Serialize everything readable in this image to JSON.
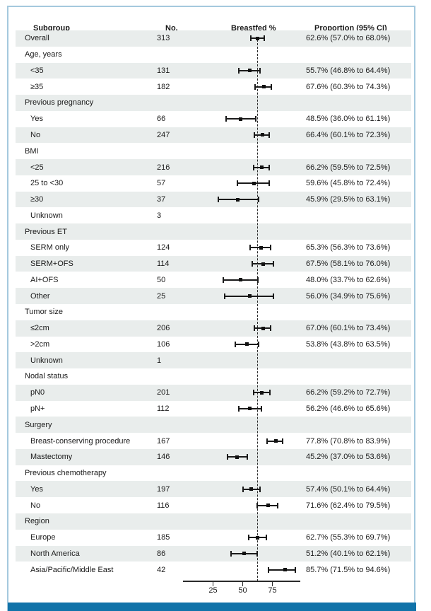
{
  "header": {
    "subgroup": "Subgroup",
    "no": "No.",
    "plot": "Breastfed %",
    "proportion": "Proportion (95% CI)"
  },
  "colors": {
    "row_shade": "#e9edec",
    "frame_border": "#a5c9de",
    "bottom_bar": "#1173a9",
    "ink": "#1a1a1a"
  },
  "axis": {
    "ticks": [
      25,
      50,
      75
    ],
    "reference_line": 62.6
  },
  "chart_data": {
    "type": "scatter",
    "subtype": "forest-plot",
    "title": "",
    "xlabel": "Breastfed %",
    "xlim": [
      0,
      100
    ],
    "xticks": [
      25,
      50,
      75
    ],
    "reference_line": 62.6,
    "legend": "none",
    "grid": false,
    "rows": [
      {
        "label": "Overall",
        "n": "313",
        "est": 62.6,
        "lo": 57.0,
        "hi": 68.0,
        "ci": "62.6% (57.0% to 68.0%)",
        "kind": "overall",
        "indent": false
      },
      {
        "label": "Age, years",
        "n": "",
        "est": null,
        "lo": null,
        "hi": null,
        "ci": "",
        "kind": "group",
        "indent": false
      },
      {
        "label": "<35",
        "n": "131",
        "est": 55.7,
        "lo": 46.8,
        "hi": 64.4,
        "ci": "55.7% (46.8% to 64.4%)",
        "kind": "item",
        "indent": true
      },
      {
        "label": "≥35",
        "n": "182",
        "est": 67.6,
        "lo": 60.3,
        "hi": 74.3,
        "ci": "67.6% (60.3% to 74.3%)",
        "kind": "item",
        "indent": true
      },
      {
        "label": "Previous pregnancy",
        "n": "",
        "est": null,
        "lo": null,
        "hi": null,
        "ci": "",
        "kind": "group",
        "indent": false
      },
      {
        "label": "Yes",
        "n": "66",
        "est": 48.5,
        "lo": 36.0,
        "hi": 61.1,
        "ci": "48.5% (36.0% to 61.1%)",
        "kind": "item",
        "indent": true
      },
      {
        "label": "No",
        "n": "247",
        "est": 66.4,
        "lo": 60.1,
        "hi": 72.3,
        "ci": "66.4% (60.1% to 72.3%)",
        "kind": "item",
        "indent": true
      },
      {
        "label": "BMI",
        "n": "",
        "est": null,
        "lo": null,
        "hi": null,
        "ci": "",
        "kind": "group",
        "indent": false
      },
      {
        "label": "<25",
        "n": "216",
        "est": 66.2,
        "lo": 59.5,
        "hi": 72.5,
        "ci": "66.2% (59.5% to 72.5%)",
        "kind": "item",
        "indent": true
      },
      {
        "label": "25 to <30",
        "n": "57",
        "est": 59.6,
        "lo": 45.8,
        "hi": 72.4,
        "ci": "59.6% (45.8% to 72.4%)",
        "kind": "item",
        "indent": true
      },
      {
        "label": "≥30",
        "n": "37",
        "est": 45.9,
        "lo": 29.5,
        "hi": 63.1,
        "ci": "45.9% (29.5% to 63.1%)",
        "kind": "item",
        "indent": true
      },
      {
        "label": "Unknown",
        "n": "3",
        "est": null,
        "lo": null,
        "hi": null,
        "ci": "",
        "kind": "item",
        "indent": true
      },
      {
        "label": "Previous ET",
        "n": "",
        "est": null,
        "lo": null,
        "hi": null,
        "ci": "",
        "kind": "group",
        "indent": false
      },
      {
        "label": "SERM only",
        "n": "124",
        "est": 65.3,
        "lo": 56.3,
        "hi": 73.6,
        "ci": "65.3% (56.3% to 73.6%)",
        "kind": "item",
        "indent": true
      },
      {
        "label": "SERM+OFS",
        "n": "114",
        "est": 67.5,
        "lo": 58.1,
        "hi": 76.0,
        "ci": "67.5% (58.1% to 76.0%)",
        "kind": "item",
        "indent": true
      },
      {
        "label": "AI+OFS",
        "n": "50",
        "est": 48.0,
        "lo": 33.7,
        "hi": 62.6,
        "ci": "48.0% (33.7% to 62.6%)",
        "kind": "item",
        "indent": true
      },
      {
        "label": "Other",
        "n": "25",
        "est": 56.0,
        "lo": 34.9,
        "hi": 75.6,
        "ci": "56.0% (34.9% to 75.6%)",
        "kind": "item",
        "indent": true
      },
      {
        "label": "Tumor size",
        "n": "",
        "est": null,
        "lo": null,
        "hi": null,
        "ci": "",
        "kind": "group",
        "indent": false
      },
      {
        "label": "≤2cm",
        "n": "206",
        "est": 67.0,
        "lo": 60.1,
        "hi": 73.4,
        "ci": "67.0% (60.1% to 73.4%)",
        "kind": "item",
        "indent": true
      },
      {
        "label": ">2cm",
        "n": "106",
        "est": 53.8,
        "lo": 43.8,
        "hi": 63.5,
        "ci": "53.8% (43.8% to 63.5%)",
        "kind": "item",
        "indent": true
      },
      {
        "label": "Unknown",
        "n": "1",
        "est": null,
        "lo": null,
        "hi": null,
        "ci": "",
        "kind": "item",
        "indent": true
      },
      {
        "label": "Nodal status",
        "n": "",
        "est": null,
        "lo": null,
        "hi": null,
        "ci": "",
        "kind": "group",
        "indent": false
      },
      {
        "label": "pN0",
        "n": "201",
        "est": 66.2,
        "lo": 59.2,
        "hi": 72.7,
        "ci": "66.2% (59.2% to 72.7%)",
        "kind": "item",
        "indent": true
      },
      {
        "label": "pN+",
        "n": "112",
        "est": 56.2,
        "lo": 46.6,
        "hi": 65.6,
        "ci": "56.2% (46.6% to 65.6%)",
        "kind": "item",
        "indent": true
      },
      {
        "label": "Surgery",
        "n": "",
        "est": null,
        "lo": null,
        "hi": null,
        "ci": "",
        "kind": "group",
        "indent": false
      },
      {
        "label": "Breast-conserving procedure",
        "n": "167",
        "est": 77.8,
        "lo": 70.8,
        "hi": 83.9,
        "ci": "77.8% (70.8% to 83.9%)",
        "kind": "item",
        "indent": true
      },
      {
        "label": "Mastectomy",
        "n": "146",
        "est": 45.2,
        "lo": 37.0,
        "hi": 53.6,
        "ci": "45.2% (37.0% to 53.6%)",
        "kind": "item",
        "indent": true
      },
      {
        "label": "Previous chemotherapy",
        "n": "",
        "est": null,
        "lo": null,
        "hi": null,
        "ci": "",
        "kind": "group",
        "indent": false
      },
      {
        "label": "Yes",
        "n": "197",
        "est": 57.4,
        "lo": 50.1,
        "hi": 64.4,
        "ci": "57.4% (50.1% to 64.4%)",
        "kind": "item",
        "indent": true
      },
      {
        "label": "No",
        "n": "116",
        "est": 71.6,
        "lo": 62.4,
        "hi": 79.5,
        "ci": "71.6% (62.4% to 79.5%)",
        "kind": "item",
        "indent": true
      },
      {
        "label": "Region",
        "n": "",
        "est": null,
        "lo": null,
        "hi": null,
        "ci": "",
        "kind": "group",
        "indent": false
      },
      {
        "label": "Europe",
        "n": "185",
        "est": 62.7,
        "lo": 55.3,
        "hi": 69.7,
        "ci": "62.7% (55.3% to 69.7%)",
        "kind": "item",
        "indent": true
      },
      {
        "label": "North America",
        "n": "86",
        "est": 51.2,
        "lo": 40.1,
        "hi": 62.1,
        "ci": "51.2% (40.1% to 62.1%)",
        "kind": "item",
        "indent": true
      },
      {
        "label": "Asia/Pacific/Middle East",
        "n": "42",
        "est": 85.7,
        "lo": 71.5,
        "hi": 94.6,
        "ci": "85.7% (71.5% to 94.6%)",
        "kind": "item",
        "indent": true
      }
    ]
  }
}
